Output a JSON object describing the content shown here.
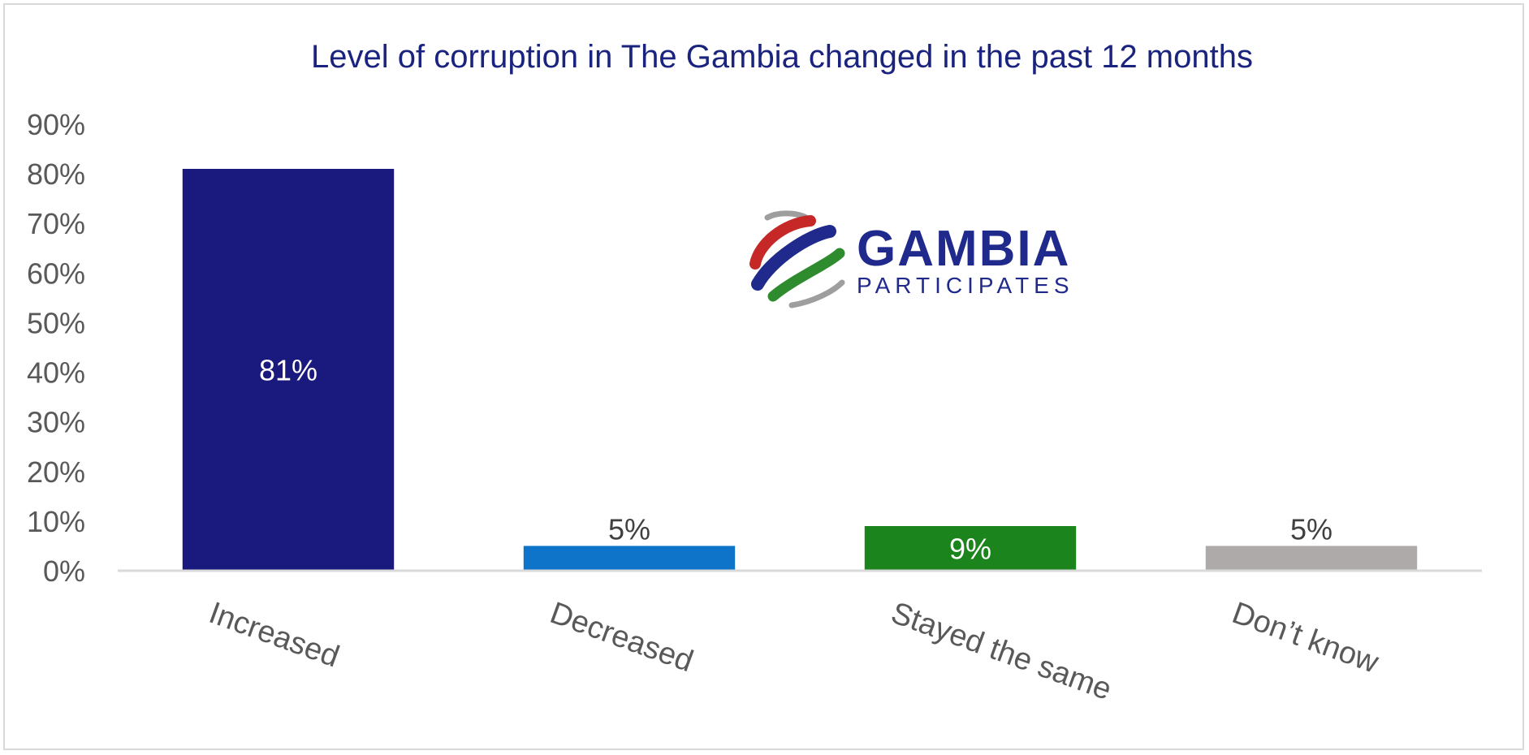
{
  "chart_data": {
    "type": "bar",
    "title": "Level of corruption in The Gambia changed in the past 12 months",
    "categories": [
      "Increased",
      "Decreased",
      "Stayed the same",
      "Don’t know"
    ],
    "values": [
      81,
      5,
      9,
      5
    ],
    "data_labels": [
      "81%",
      "5%",
      "9%",
      "5%"
    ],
    "bar_colors": [
      "#1a1a7e",
      "#0d74c9",
      "#1c841c",
      "#aeaaaa"
    ],
    "label_colors": [
      "#ffffff",
      "#404040",
      "#ffffff",
      "#404040"
    ],
    "label_position": [
      "inside-center",
      "outside-end",
      "inside-center",
      "outside-end"
    ],
    "ylim": [
      0,
      90
    ],
    "yticks": [
      0,
      10,
      20,
      30,
      40,
      50,
      60,
      70,
      80,
      90
    ],
    "ytick_labels": [
      "0%",
      "10%",
      "20%",
      "30%",
      "40%",
      "50%",
      "60%",
      "70%",
      "80%",
      "90%"
    ],
    "xlabel": "",
    "ylabel": "",
    "grid": false,
    "legend": "none"
  },
  "logo": {
    "name": "GAMBIA",
    "subtitle": "PARTICIPATES",
    "colors": [
      "#c62828",
      "#1f2a8c",
      "#2e8b2e",
      "#9e9e9e"
    ]
  }
}
